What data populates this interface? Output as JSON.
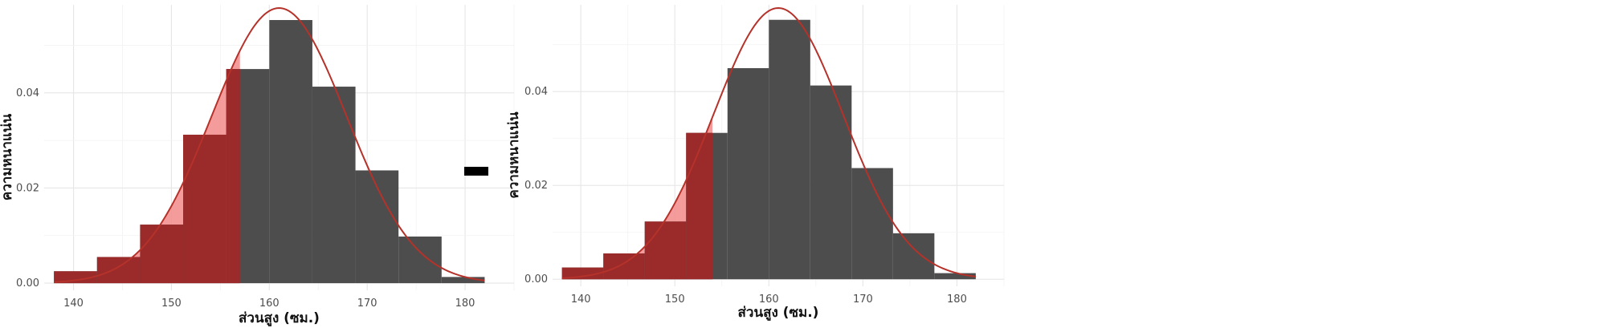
{
  "colors": {
    "bar": "#4d4d4d",
    "shade_dark": "#9b2a2a",
    "shade_light": "#f28b8b",
    "curve": "#b5322a",
    "grid_major": "#e6e6e6",
    "grid_minor": "#f2f2f2",
    "marker": "#000000"
  },
  "chart_data": [
    {
      "type": "bar",
      "subtype": "histogram-with-normal-density",
      "xlabel": "ส่วนสูง (ซม.)",
      "ylabel": "ความหนาแน่น",
      "xlim": [
        137,
        185
      ],
      "ylim": [
        -0.0015,
        0.0585
      ],
      "x_ticks": [
        "140",
        "150",
        "160",
        "170",
        "180"
      ],
      "y_ticks": [
        "0.00",
        "0.02",
        "0.04"
      ],
      "bins": [
        {
          "x0": 138.0,
          "x1": 142.4,
          "density": 0.0025
        },
        {
          "x0": 142.4,
          "x1": 146.8,
          "density": 0.0055
        },
        {
          "x0": 146.8,
          "x1": 151.2,
          "density": 0.0123
        },
        {
          "x0": 151.2,
          "x1": 155.6,
          "density": 0.0312
        },
        {
          "x0": 155.6,
          "x1": 160.0,
          "density": 0.045
        },
        {
          "x0": 160.0,
          "x1": 164.4,
          "density": 0.0553
        },
        {
          "x0": 164.4,
          "x1": 168.8,
          "density": 0.0413
        },
        {
          "x0": 168.8,
          "x1": 173.2,
          "density": 0.0237
        },
        {
          "x0": 173.2,
          "x1": 177.6,
          "density": 0.0098
        },
        {
          "x0": 177.6,
          "x1": 182.0,
          "density": 0.0013
        }
      ],
      "normal_curve": {
        "mean": 161,
        "sd": 6.9,
        "x_range": [
          138,
          182
        ]
      },
      "shaded_below": 157,
      "marker": true,
      "grid": true,
      "legend": "none"
    },
    {
      "type": "bar",
      "subtype": "histogram-with-normal-density",
      "xlabel": "ส่วนสูง (ซม.)",
      "ylabel": "ความหนาแน่น",
      "xlim": [
        137,
        185
      ],
      "ylim": [
        -0.0015,
        0.0585
      ],
      "x_ticks": [
        "140",
        "150",
        "160",
        "170",
        "180"
      ],
      "y_ticks": [
        "0.00",
        "0.02",
        "0.04"
      ],
      "bins": [
        {
          "x0": 138.0,
          "x1": 142.4,
          "density": 0.0025
        },
        {
          "x0": 142.4,
          "x1": 146.8,
          "density": 0.0055
        },
        {
          "x0": 146.8,
          "x1": 151.2,
          "density": 0.0123
        },
        {
          "x0": 151.2,
          "x1": 155.6,
          "density": 0.0312
        },
        {
          "x0": 155.6,
          "x1": 160.0,
          "density": 0.045
        },
        {
          "x0": 160.0,
          "x1": 164.4,
          "density": 0.0553
        },
        {
          "x0": 164.4,
          "x1": 168.8,
          "density": 0.0413
        },
        {
          "x0": 168.8,
          "x1": 173.2,
          "density": 0.0237
        },
        {
          "x0": 173.2,
          "x1": 177.6,
          "density": 0.0098
        },
        {
          "x0": 177.6,
          "x1": 182.0,
          "density": 0.0013
        }
      ],
      "normal_curve": {
        "mean": 161,
        "sd": 6.9,
        "x_range": [
          138,
          182
        ]
      },
      "shaded_below": 154,
      "marker": false,
      "grid": true,
      "legend": "none"
    }
  ]
}
